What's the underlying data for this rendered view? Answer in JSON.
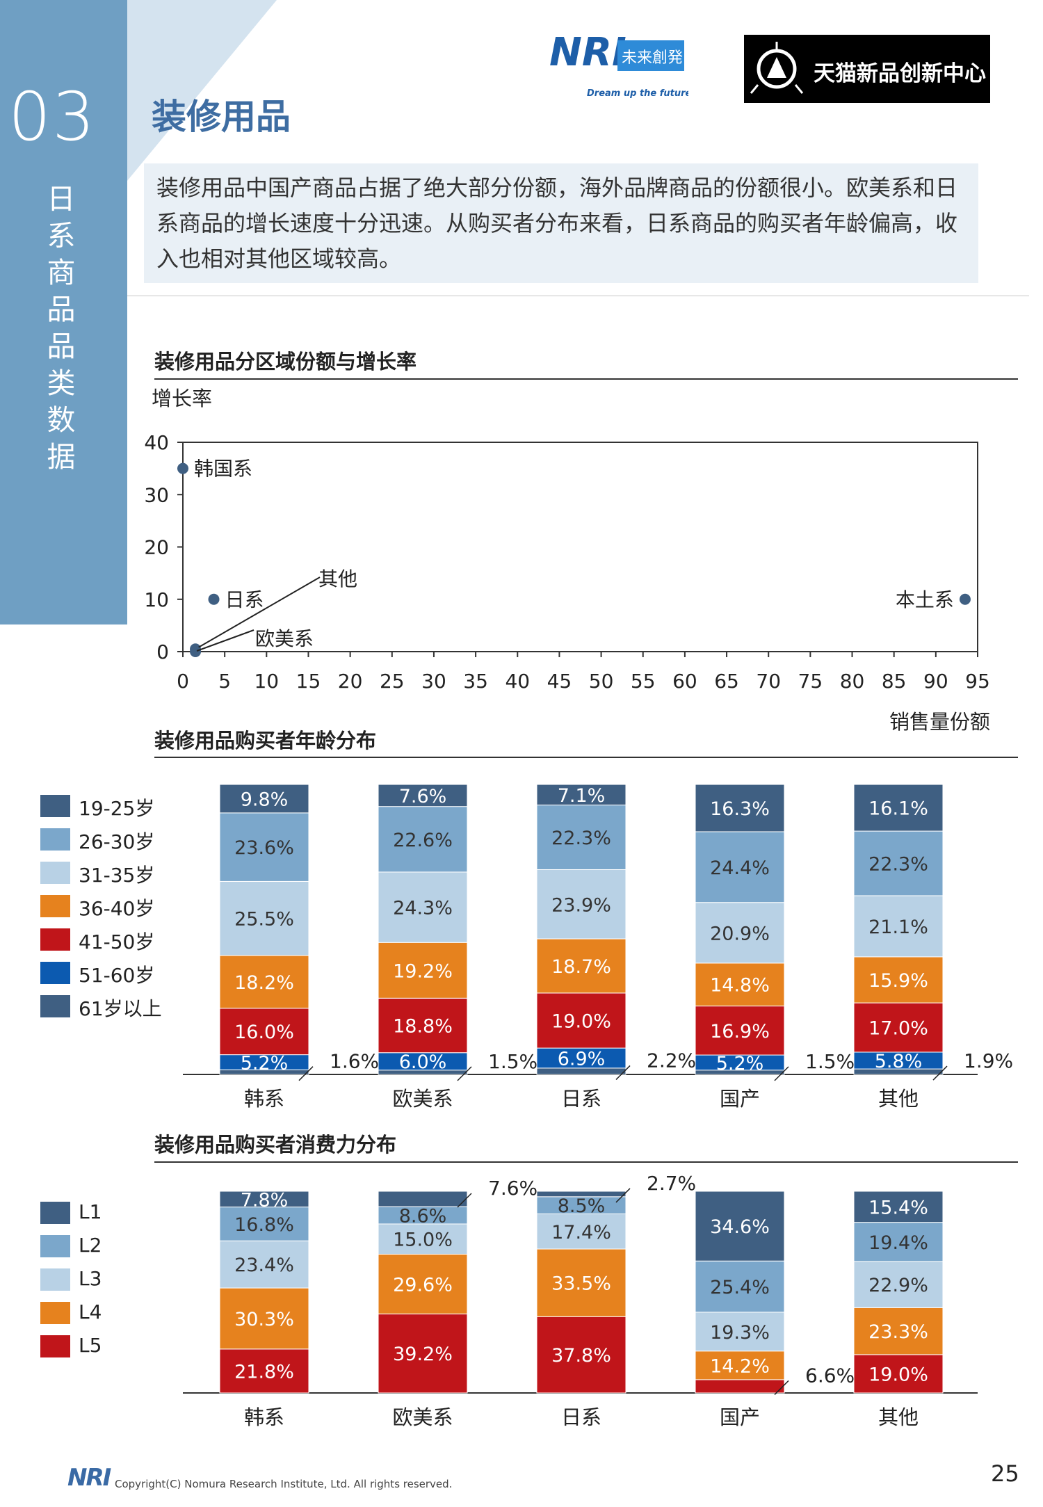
{
  "section": {
    "number": "03",
    "title_chars": [
      "日",
      "系",
      "商",
      "品",
      "品",
      "类",
      "数",
      "据"
    ]
  },
  "page_title": "装修用品",
  "logos": {
    "nri_brand": "NRI",
    "nri_sub": "未来創発",
    "nri_slogan": "Dream up the future.",
    "tmic": "天猫新品创新中心"
  },
  "summary": "装修用品中国产商品占据了绝大部分份额，海外品牌商品的份额很小。欧美系和日系商品的增长速度十分迅速。从购买者分布来看，日系商品的购买者年龄偏高，收入也相对其他区域较高。",
  "colors": {
    "accent_blue": "#6f9fc3",
    "title_blue": "#3e6da2",
    "dot": "#3f5f82",
    "age": [
      "#3f5f82",
      "#7ba7cb",
      "#b8d1e5",
      "#e6821e",
      "#c0151a",
      "#0c5ab0",
      "#3f5f82"
    ],
    "income": [
      "#3f5f82",
      "#7ba7cb",
      "#b8d1e5",
      "#e6821e",
      "#c0151a"
    ]
  },
  "chart_data": [
    {
      "type": "scatter",
      "title": "装修用品分区域份额与增长率",
      "ylabel": "增长率",
      "xlabel": "销售量份额",
      "xlim": [
        0,
        95
      ],
      "ylim": [
        0,
        40
      ],
      "xticks": [
        "0",
        "5",
        "10",
        "15",
        "20",
        "25",
        "30",
        "35",
        "40",
        "45",
        "50",
        "55",
        "60",
        "65",
        "70",
        "75",
        "80",
        "85",
        "90",
        "95"
      ],
      "yticks": [
        "0",
        "10",
        "20",
        "30",
        "40"
      ],
      "points": [
        {
          "label": "韩国系",
          "x": 0,
          "y": 35
        },
        {
          "label": "日系",
          "x": 3.7,
          "y": 10
        },
        {
          "label": "其他",
          "x": 1.5,
          "y": 0.5
        },
        {
          "label": "欧美系",
          "x": 1.5,
          "y": 0
        },
        {
          "label": "本土系",
          "x": 93.5,
          "y": 10
        }
      ]
    },
    {
      "type": "bar",
      "stacked": true,
      "title": "装修用品购买者年龄分布",
      "categories": [
        "韩系",
        "欧美系",
        "日系",
        "国产",
        "其他"
      ],
      "series": [
        {
          "name": "19-25岁",
          "values": [
            9.8,
            7.6,
            7.1,
            16.3,
            16.1
          ]
        },
        {
          "name": "26-30岁",
          "values": [
            23.6,
            22.6,
            22.3,
            24.4,
            22.3
          ]
        },
        {
          "name": "31-35岁",
          "values": [
            25.5,
            24.3,
            23.9,
            20.9,
            21.1
          ]
        },
        {
          "name": "36-40岁",
          "values": [
            18.2,
            19.2,
            18.7,
            14.8,
            15.9
          ]
        },
        {
          "name": "41-50岁",
          "values": [
            16.0,
            18.8,
            19.0,
            16.9,
            17.0
          ]
        },
        {
          "name": "51-60岁",
          "values": [
            5.2,
            6.0,
            6.9,
            5.2,
            5.8
          ]
        },
        {
          "name": "61岁以上",
          "values": [
            1.6,
            1.5,
            2.2,
            1.5,
            1.9
          ]
        }
      ],
      "labels": [
        [
          "9.8%",
          "7.6%",
          "7.1%",
          "16.3%",
          "16.1%"
        ],
        [
          "23.6%",
          "22.6%",
          "22.3%",
          "24.4%",
          "22.3%"
        ],
        [
          "25.5%",
          "24.3%",
          "23.9%",
          "20.9%",
          "21.1%"
        ],
        [
          "18.2%",
          "19.2%",
          "18.7%",
          "14.8%",
          "15.9%"
        ],
        [
          "16.0%",
          "18.8%",
          "19.0%",
          "16.9%",
          "17.0%"
        ],
        [
          "5.2%",
          "6.0%",
          "6.9%",
          "5.2%",
          "5.8%"
        ],
        [
          "1.6%",
          "1.5%",
          "2.2%",
          "1.5%",
          "1.9%"
        ]
      ],
      "ylim": [
        0,
        100
      ]
    },
    {
      "type": "bar",
      "stacked": true,
      "title": "装修用品购买者消费力分布",
      "categories": [
        "韩系",
        "欧美系",
        "日系",
        "国产",
        "其他"
      ],
      "series": [
        {
          "name": "L1",
          "values": [
            7.8,
            7.6,
            2.7,
            34.6,
            15.4
          ]
        },
        {
          "name": "L2",
          "values": [
            16.8,
            8.6,
            8.5,
            25.4,
            19.4
          ]
        },
        {
          "name": "L3",
          "values": [
            23.4,
            15.0,
            17.4,
            19.3,
            22.9
          ]
        },
        {
          "name": "L4",
          "values": [
            30.3,
            29.6,
            33.5,
            14.2,
            23.3
          ]
        },
        {
          "name": "L5",
          "values": [
            21.8,
            39.2,
            37.8,
            6.6,
            19.0
          ]
        }
      ],
      "labels": [
        [
          "7.8%",
          "7.6%",
          "2.7%",
          "34.6%",
          "15.4%"
        ],
        [
          "16.8%",
          "8.6%",
          "8.5%",
          "25.4%",
          "19.4%"
        ],
        [
          "23.4%",
          "15.0%",
          "17.4%",
          "19.3%",
          "22.9%"
        ],
        [
          "30.3%",
          "29.6%",
          "33.5%",
          "14.2%",
          "23.3%"
        ],
        [
          "21.8%",
          "39.2%",
          "37.8%",
          "6.6%",
          "19.0%"
        ]
      ],
      "ylim": [
        0,
        100
      ]
    }
  ],
  "footer": {
    "logo": "NRI",
    "copyright": "Copyright(C) Nomura Research Institute, Ltd. All rights reserved.",
    "page": "25"
  }
}
